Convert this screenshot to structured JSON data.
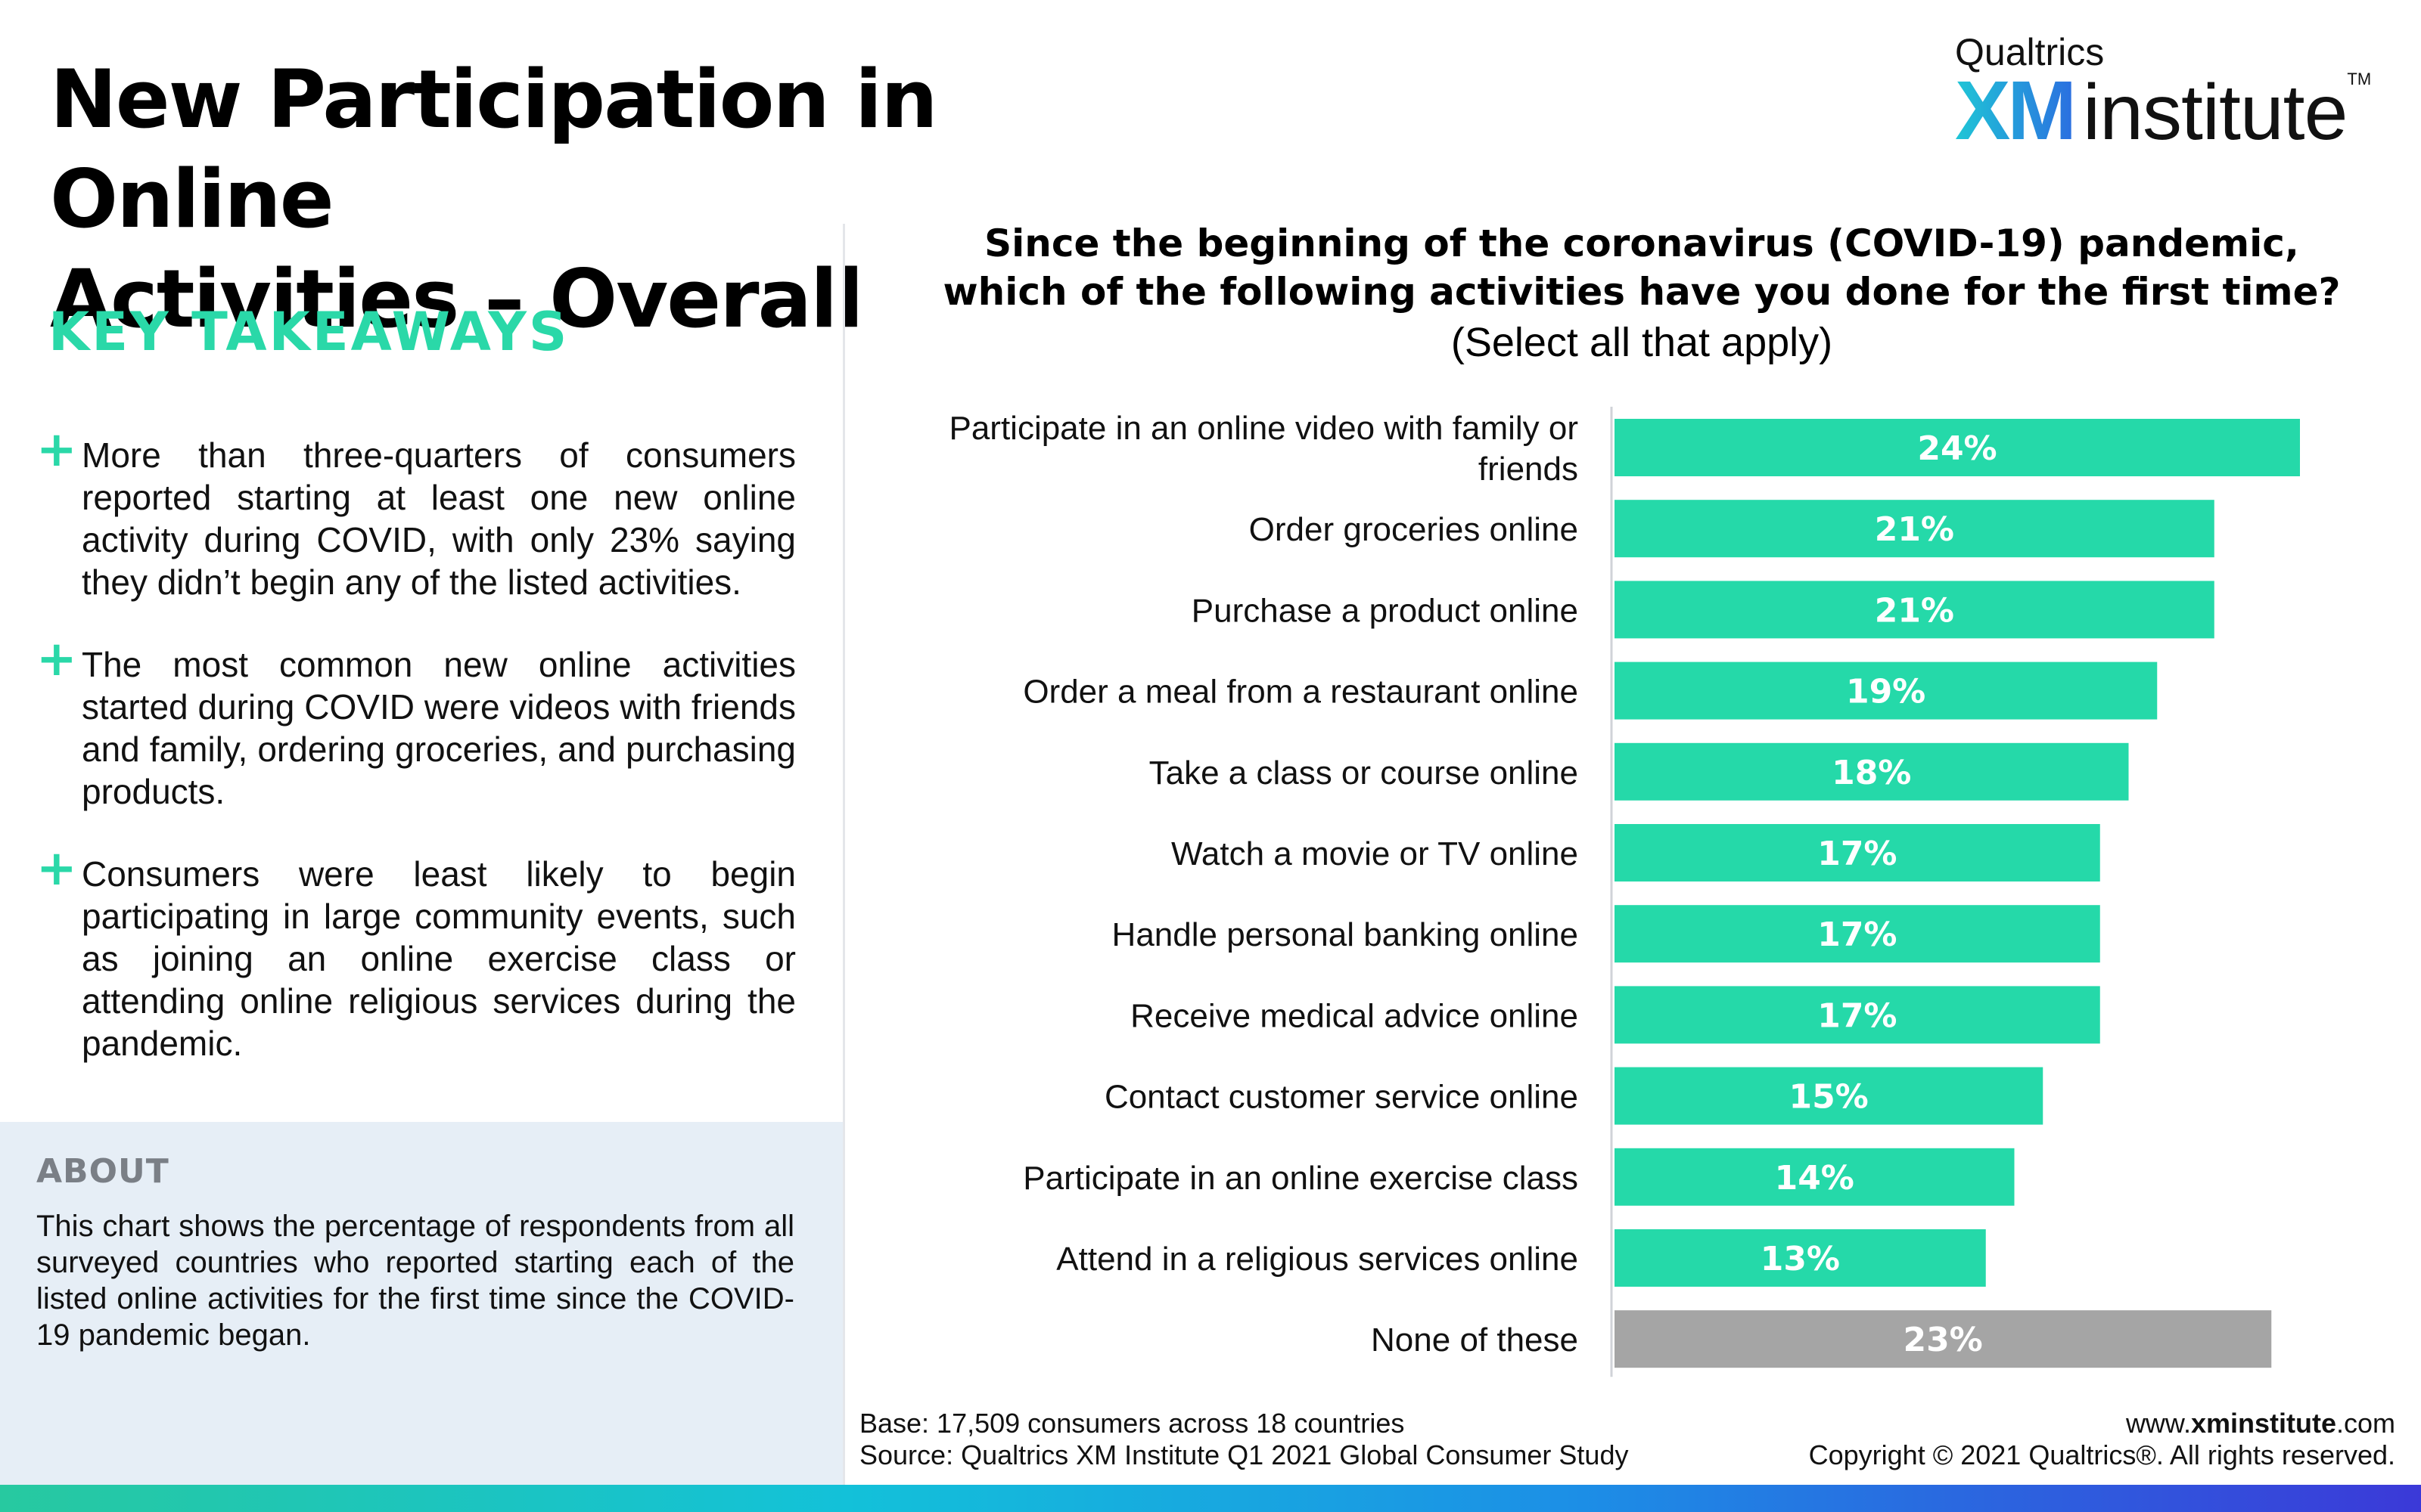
{
  "title_line1": "New Participation in Online",
  "title_line2": "Activities – Overall",
  "logo": {
    "top": "Qualtrics",
    "xm": "XM",
    "institute": "institute",
    "tm": "TM"
  },
  "takeaways": {
    "heading": "KEY TAKEAWAYS",
    "items": [
      "More than three-quarters of consumers reported starting at least one new online activity during COVID, with only 23% saying they didn’t begin any of the listed activities.",
      "The most common new online activities started during COVID were videos with friends and family, ordering groceries, and purchasing products.",
      "Consumers were least likely to begin participating in large community events, such as joining an online exercise class or attending online religious services during the pandemic."
    ]
  },
  "about": {
    "heading": "ABOUT",
    "text": "This chart shows the percentage of respondents from all surveyed countries who reported starting each of the listed online activities for the first time since the COVID-19 pandemic began."
  },
  "question": {
    "line1": "Since the beginning of the coronavirus (COVID-19) pandemic,",
    "line2": "which of the following activities have you done for the first time?",
    "note": "(Select all that apply)"
  },
  "chart_data": {
    "type": "bar",
    "orientation": "horizontal",
    "categories": [
      [
        "Participate in an online video with family or",
        "friends"
      ],
      [
        "Order groceries online"
      ],
      [
        "Purchase a product online"
      ],
      [
        "Order a meal from a restaurant online"
      ],
      [
        "Take a class or course online"
      ],
      [
        "Watch a movie or TV online"
      ],
      [
        "Handle personal banking online"
      ],
      [
        "Receive medical advice online"
      ],
      [
        "Contact customer service online"
      ],
      [
        "Participate in an online exercise class"
      ],
      [
        "Attend in a religious services online"
      ],
      [
        "None of these"
      ]
    ],
    "values": [
      24,
      21,
      21,
      19,
      18,
      17,
      17,
      17,
      15,
      14,
      13,
      23
    ],
    "labels": [
      "24%",
      "21%",
      "21%",
      "19%",
      "18%",
      "17%",
      "17%",
      "17%",
      "15%",
      "14%",
      "13%",
      "23%"
    ],
    "colors": [
      "#25d9a9",
      "#25d9a9",
      "#25d9a9",
      "#25d9a9",
      "#25d9a9",
      "#25d9a9",
      "#25d9a9",
      "#25d9a9",
      "#25d9a9",
      "#25d9a9",
      "#25d9a9",
      "#a5a5a5"
    ],
    "xlim": [
      0,
      25
    ],
    "grid": false,
    "legend": "none"
  },
  "footer": {
    "base": "Base: 17,509 consumers across 18 countries",
    "source": "Source: Qualtrics XM Institute Q1 2021 Global Consumer Study",
    "url_prefix": "www.",
    "url_bold": "xminstitute",
    "url_suffix": ".com",
    "copyright": "Copyright © 2021 Qualtrics®. All rights reserved."
  }
}
